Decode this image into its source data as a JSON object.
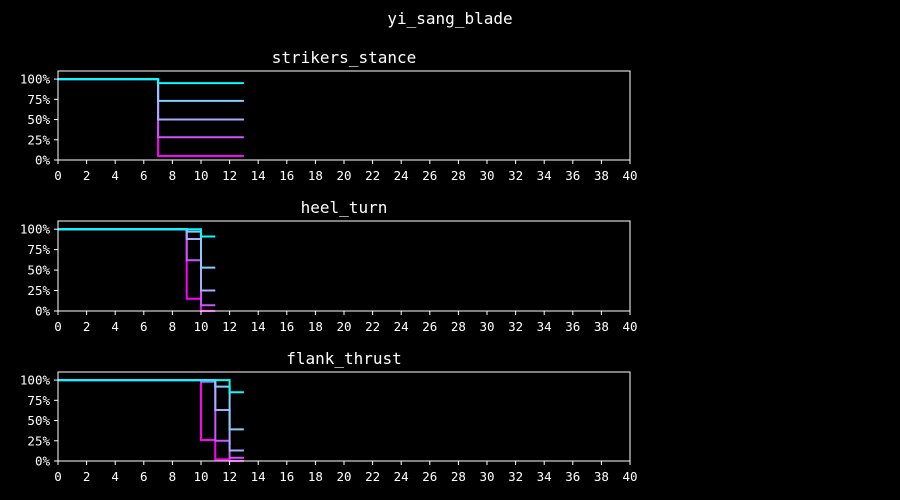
{
  "title": "yi_sang_blade",
  "chart_data": [
    {
      "type": "line",
      "title": "strikers_stance",
      "xlim": [
        0,
        40
      ],
      "ylim": [
        0,
        1.1
      ],
      "x_ticks": [
        "0",
        "2",
        "4",
        "6",
        "8",
        "10",
        "12",
        "14",
        "16",
        "18",
        "20",
        "22",
        "24",
        "26",
        "28",
        "30",
        "32",
        "34",
        "36",
        "38",
        "40"
      ],
      "y_ticks": [
        {
          "value": 0,
          "label": "0%"
        },
        {
          "value": 0.25,
          "label": "25%"
        },
        {
          "value": 0.5,
          "label": "50%"
        },
        {
          "value": 0.75,
          "label": "75%"
        },
        {
          "value": 1.0,
          "label": "100%"
        }
      ],
      "series": [
        {
          "color": "#ff00ff",
          "points": [
            [
              0,
              1.0
            ],
            [
              7,
              1.0
            ],
            [
              7,
              0.05
            ],
            [
              13,
              0.05
            ]
          ]
        },
        {
          "color": "#cc55ff",
          "points": [
            [
              0,
              1.0
            ],
            [
              7,
              1.0
            ],
            [
              7,
              0.28
            ],
            [
              13,
              0.28
            ]
          ]
        },
        {
          "color": "#aaaaff",
          "points": [
            [
              0,
              1.0
            ],
            [
              7,
              1.0
            ],
            [
              7,
              0.5
            ],
            [
              13,
              0.5
            ]
          ]
        },
        {
          "color": "#88ccff",
          "points": [
            [
              0,
              1.0
            ],
            [
              7,
              1.0
            ],
            [
              7,
              0.73
            ],
            [
              13,
              0.73
            ]
          ]
        },
        {
          "color": "#00ffff",
          "points": [
            [
              0,
              1.0
            ],
            [
              7,
              1.0
            ],
            [
              7,
              0.95
            ],
            [
              13,
              0.95
            ]
          ]
        }
      ]
    },
    {
      "type": "line",
      "title": "heel_turn",
      "xlim": [
        0,
        40
      ],
      "ylim": [
        0,
        1.1
      ],
      "x_ticks": [
        "0",
        "2",
        "4",
        "6",
        "8",
        "10",
        "12",
        "14",
        "16",
        "18",
        "20",
        "22",
        "24",
        "26",
        "28",
        "30",
        "32",
        "34",
        "36",
        "38",
        "40"
      ],
      "y_ticks": [
        {
          "value": 0,
          "label": "0%"
        },
        {
          "value": 0.25,
          "label": "25%"
        },
        {
          "value": 0.5,
          "label": "50%"
        },
        {
          "value": 0.75,
          "label": "75%"
        },
        {
          "value": 1.0,
          "label": "100%"
        }
      ],
      "series": [
        {
          "color": "#ff00ff",
          "points": [
            [
              0,
              1.0
            ],
            [
              9,
              1.0
            ],
            [
              9,
              0.15
            ],
            [
              10,
              0.15
            ],
            [
              10,
              0.0
            ],
            [
              11,
              0.0
            ]
          ]
        },
        {
          "color": "#cc55ff",
          "points": [
            [
              0,
              1.0
            ],
            [
              9,
              1.0
            ],
            [
              9,
              0.62
            ],
            [
              10,
              0.62
            ],
            [
              10,
              0.07
            ],
            [
              11,
              0.07
            ]
          ]
        },
        {
          "color": "#aaaaff",
          "points": [
            [
              0,
              1.0
            ],
            [
              9,
              1.0
            ],
            [
              9,
              0.88
            ],
            [
              10,
              0.88
            ],
            [
              10,
              0.25
            ],
            [
              11,
              0.25
            ]
          ]
        },
        {
          "color": "#88ccff",
          "points": [
            [
              0,
              1.0
            ],
            [
              9,
              1.0
            ],
            [
              9,
              0.97
            ],
            [
              10,
              0.97
            ],
            [
              10,
              0.53
            ],
            [
              11,
              0.53
            ]
          ]
        },
        {
          "color": "#00ffff",
          "points": [
            [
              0,
              1.0
            ],
            [
              10,
              1.0
            ],
            [
              10,
              0.91
            ],
            [
              11,
              0.91
            ]
          ]
        }
      ]
    },
    {
      "type": "line",
      "title": "flank_thrust",
      "xlim": [
        0,
        40
      ],
      "ylim": [
        0,
        1.1
      ],
      "x_ticks": [
        "0",
        "2",
        "4",
        "6",
        "8",
        "10",
        "12",
        "14",
        "16",
        "18",
        "20",
        "22",
        "24",
        "26",
        "28",
        "30",
        "32",
        "34",
        "36",
        "38",
        "40"
      ],
      "y_ticks": [
        {
          "value": 0,
          "label": "0%"
        },
        {
          "value": 0.25,
          "label": "25%"
        },
        {
          "value": 0.5,
          "label": "50%"
        },
        {
          "value": 0.75,
          "label": "75%"
        },
        {
          "value": 1.0,
          "label": "100%"
        }
      ],
      "series": [
        {
          "color": "#ff00ff",
          "points": [
            [
              0,
              1.0
            ],
            [
              10,
              1.0
            ],
            [
              10,
              0.86
            ],
            [
              10,
              0.26
            ],
            [
              11,
              0.26
            ],
            [
              11,
              0.02
            ],
            [
              12,
              0.02
            ],
            [
              12,
              0.0
            ],
            [
              13,
              0.0
            ]
          ]
        },
        {
          "color": "#cc55ff",
          "points": [
            [
              0,
              1.0
            ],
            [
              10,
              1.0
            ],
            [
              10,
              0.98
            ],
            [
              11,
              0.98
            ],
            [
              11,
              0.25
            ],
            [
              12,
              0.25
            ],
            [
              12,
              0.04
            ],
            [
              13,
              0.04
            ]
          ]
        },
        {
          "color": "#aaaaff",
          "points": [
            [
              0,
              1.0
            ],
            [
              11,
              1.0
            ],
            [
              11,
              0.63
            ],
            [
              12,
              0.63
            ],
            [
              12,
              0.13
            ],
            [
              13,
              0.13
            ]
          ]
        },
        {
          "color": "#88ccff",
          "points": [
            [
              0,
              1.0
            ],
            [
              11,
              1.0
            ],
            [
              11,
              0.92
            ],
            [
              12,
              0.92
            ],
            [
              12,
              0.39
            ],
            [
              13,
              0.39
            ]
          ]
        },
        {
          "color": "#00ffff",
          "points": [
            [
              0,
              1.0
            ],
            [
              12,
              1.0
            ],
            [
              12,
              0.85
            ],
            [
              13,
              0.85
            ]
          ]
        }
      ]
    }
  ]
}
